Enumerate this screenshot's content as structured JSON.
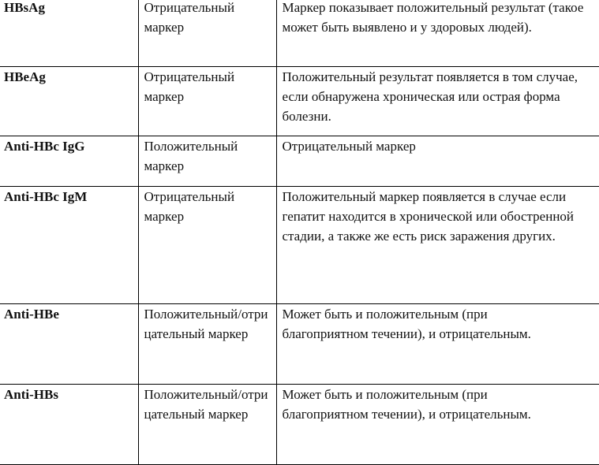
{
  "rows": [
    {
      "marker": "HBsAg",
      "status": "Отрицательный маркер",
      "note": "Маркер показывает положительный результат (такое может быть выявлено и у здоровых людей)."
    },
    {
      "marker": "HBeAg",
      "status": "Отрицательный маркер",
      "note": "Положительный результат появляется в том случае, если обнаружена хроническая или острая форма болезни."
    },
    {
      "marker": "Anti-HBc IgG",
      "status": "Положительный маркер",
      "note": "Отрицательный маркер"
    },
    {
      "marker": "Anti-HBc IgM",
      "status": "Отрицательный маркер",
      "note": "Положительный маркер появляется в случае если гепатит находится в хронической или обостренной стадии, а также же есть риск заражения других."
    },
    {
      "marker": "Anti-HBe",
      "status": "Положительный/отрицательный маркер",
      "note": "Может быть и положительным (при благоприятном течении), и отрицательным."
    },
    {
      "marker": "Anti-HBs",
      "status": "Положительный/отрицательный маркер",
      "note": "Может быть и положительным (при благоприятном течении), и отрицательным."
    }
  ]
}
